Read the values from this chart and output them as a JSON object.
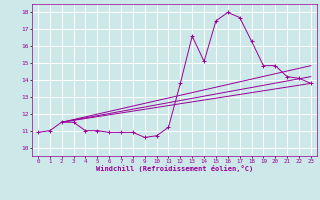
{
  "xlabel": "Windchill (Refroidissement éolien,°C)",
  "bg_color": "#cce8e8",
  "grid_color": "#ffffff",
  "line_color": "#990099",
  "marker": "+",
  "xlim": [
    -0.5,
    23.5
  ],
  "ylim": [
    9.5,
    18.5
  ],
  "xticks": [
    0,
    1,
    2,
    3,
    4,
    5,
    6,
    7,
    8,
    9,
    10,
    11,
    12,
    13,
    14,
    15,
    16,
    17,
    18,
    19,
    20,
    21,
    22,
    23
  ],
  "yticks": [
    10,
    11,
    12,
    13,
    14,
    15,
    16,
    17,
    18
  ],
  "line1_x": [
    0,
    1,
    2,
    3,
    4,
    5,
    6,
    7,
    8,
    9,
    10,
    11,
    12,
    13,
    14,
    15,
    16,
    17,
    18,
    19,
    20,
    21,
    22,
    23
  ],
  "line1_y": [
    10.9,
    11.0,
    11.5,
    11.5,
    11.0,
    11.0,
    10.9,
    10.9,
    10.9,
    10.6,
    10.7,
    11.2,
    13.8,
    16.6,
    15.1,
    17.5,
    18.0,
    17.7,
    16.3,
    14.85,
    14.85,
    14.2,
    14.1,
    13.8
  ],
  "line2_x": [
    2,
    23
  ],
  "line2_y": [
    11.5,
    13.8
  ],
  "line3_x": [
    2,
    23
  ],
  "line3_y": [
    11.5,
    14.85
  ],
  "line4_x": [
    2,
    23
  ],
  "line4_y": [
    11.5,
    14.2
  ]
}
